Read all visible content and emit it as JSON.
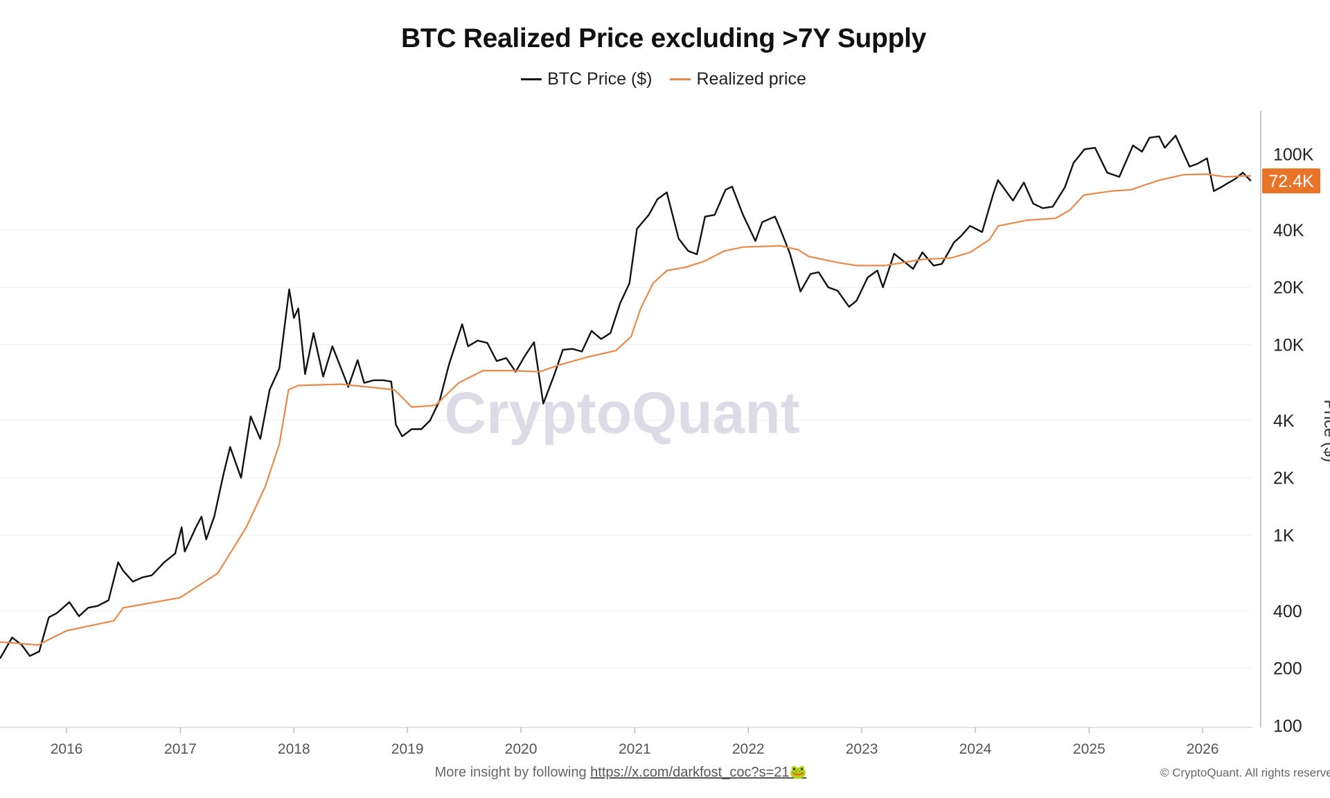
{
  "chart_data": {
    "type": "line",
    "title": "BTC Realized Price excluding >7Y Supply",
    "ylabel": "Price ($)",
    "y_scale": "log",
    "ylim": [
      100,
      160000
    ],
    "xlim": [
      "2015-06-01",
      "2026-06-10"
    ],
    "x_tick_labels": [
      "2016",
      "2017",
      "2018",
      "2019",
      "2020",
      "2021",
      "2022",
      "2023",
      "2024",
      "2025",
      "2026"
    ],
    "y_tick_labels": [
      "100K",
      "40K",
      "20K",
      "10K",
      "4K",
      "2K",
      "1K",
      "400",
      "200",
      "100"
    ],
    "y_tick_values": [
      100000,
      40000,
      20000,
      10000,
      4000,
      2000,
      1000,
      400,
      200,
      100
    ],
    "grid": true,
    "legend_position": "top-center",
    "watermark": "CryptoQuant",
    "last_value_badge": {
      "label": "72.4K",
      "value": 72400,
      "color": "#e8742a"
    },
    "series": [
      {
        "name": "BTC Price ($)",
        "color": "#111111",
        "points": [
          [
            "2015-06-01",
            225
          ],
          [
            "2015-07-10",
            290
          ],
          [
            "2015-08-10",
            265
          ],
          [
            "2015-09-05",
            232
          ],
          [
            "2015-10-05",
            245
          ],
          [
            "2015-11-05",
            370
          ],
          [
            "2015-12-01",
            390
          ],
          [
            "2016-01-10",
            445
          ],
          [
            "2016-02-10",
            375
          ],
          [
            "2016-03-10",
            415
          ],
          [
            "2016-04-10",
            425
          ],
          [
            "2016-05-15",
            455
          ],
          [
            "2016-06-15",
            720
          ],
          [
            "2016-07-01",
            650
          ],
          [
            "2016-08-01",
            570
          ],
          [
            "2016-09-01",
            600
          ],
          [
            "2016-10-01",
            615
          ],
          [
            "2016-11-10",
            720
          ],
          [
            "2016-12-15",
            800
          ],
          [
            "2017-01-05",
            1100
          ],
          [
            "2017-01-15",
            820
          ],
          [
            "2017-02-20",
            1100
          ],
          [
            "2017-03-10",
            1250
          ],
          [
            "2017-03-25",
            950
          ],
          [
            "2017-04-20",
            1250
          ],
          [
            "2017-05-20",
            2100
          ],
          [
            "2017-06-10",
            2900
          ],
          [
            "2017-07-15",
            2000
          ],
          [
            "2017-08-15",
            4200
          ],
          [
            "2017-09-15",
            3200
          ],
          [
            "2017-10-15",
            5800
          ],
          [
            "2017-11-15",
            7500
          ],
          [
            "2017-12-17",
            19500
          ],
          [
            "2018-01-01",
            13800
          ],
          [
            "2018-01-15",
            15500
          ],
          [
            "2018-02-06",
            7000
          ],
          [
            "2018-03-05",
            11500
          ],
          [
            "2018-04-05",
            6800
          ],
          [
            "2018-05-05",
            9800
          ],
          [
            "2018-06-25",
            6000
          ],
          [
            "2018-07-25",
            8300
          ],
          [
            "2018-08-15",
            6300
          ],
          [
            "2018-09-15",
            6500
          ],
          [
            "2018-10-15",
            6500
          ],
          [
            "2018-11-10",
            6400
          ],
          [
            "2018-11-25",
            3800
          ],
          [
            "2018-12-15",
            3300
          ],
          [
            "2019-01-15",
            3600
          ],
          [
            "2019-02-15",
            3600
          ],
          [
            "2019-03-15",
            4000
          ],
          [
            "2019-04-15",
            5100
          ],
          [
            "2019-05-15",
            7900
          ],
          [
            "2019-06-26",
            12800
          ],
          [
            "2019-07-15",
            9800
          ],
          [
            "2019-08-15",
            10500
          ],
          [
            "2019-09-15",
            10200
          ],
          [
            "2019-10-15",
            8200
          ],
          [
            "2019-11-15",
            8500
          ],
          [
            "2019-12-15",
            7200
          ],
          [
            "2020-01-15",
            8800
          ],
          [
            "2020-02-12",
            10300
          ],
          [
            "2020-03-13",
            4900
          ],
          [
            "2020-04-15",
            6800
          ],
          [
            "2020-05-15",
            9400
          ],
          [
            "2020-06-15",
            9500
          ],
          [
            "2020-07-15",
            9200
          ],
          [
            "2020-08-15",
            11800
          ],
          [
            "2020-09-15",
            10700
          ],
          [
            "2020-10-15",
            11500
          ],
          [
            "2020-11-15",
            16500
          ],
          [
            "2020-12-15",
            21000
          ],
          [
            "2021-01-08",
            40500
          ],
          [
            "2021-02-15",
            48000
          ],
          [
            "2021-03-15",
            58000
          ],
          [
            "2021-04-14",
            63000
          ],
          [
            "2021-05-22",
            36000
          ],
          [
            "2021-06-22",
            31000
          ],
          [
            "2021-07-20",
            29800
          ],
          [
            "2021-08-15",
            47000
          ],
          [
            "2021-09-15",
            48000
          ],
          [
            "2021-10-20",
            65000
          ],
          [
            "2021-11-10",
            67500
          ],
          [
            "2021-12-15",
            48000
          ],
          [
            "2022-01-24",
            35000
          ],
          [
            "2022-02-15",
            44000
          ],
          [
            "2022-03-28",
            47000
          ],
          [
            "2022-04-15",
            40000
          ],
          [
            "2022-05-15",
            30000
          ],
          [
            "2022-06-18",
            19000
          ],
          [
            "2022-07-20",
            23500
          ],
          [
            "2022-08-15",
            24000
          ],
          [
            "2022-09-15",
            20000
          ],
          [
            "2022-10-15",
            19200
          ],
          [
            "2022-11-21",
            15800
          ],
          [
            "2022-12-15",
            17000
          ],
          [
            "2023-01-20",
            22500
          ],
          [
            "2023-02-20",
            24500
          ],
          [
            "2023-03-10",
            20000
          ],
          [
            "2023-04-15",
            30000
          ],
          [
            "2023-06-15",
            25000
          ],
          [
            "2023-07-15",
            30500
          ],
          [
            "2023-08-20",
            26000
          ],
          [
            "2023-09-15",
            26500
          ],
          [
            "2023-10-25",
            34500
          ],
          [
            "2023-11-15",
            37000
          ],
          [
            "2023-12-15",
            42000
          ],
          [
            "2024-01-23",
            39000
          ],
          [
            "2024-02-28",
            62000
          ],
          [
            "2024-03-14",
            73000
          ],
          [
            "2024-05-01",
            57000
          ],
          [
            "2024-06-05",
            71000
          ],
          [
            "2024-07-05",
            55000
          ],
          [
            "2024-08-05",
            52000
          ],
          [
            "2024-09-06",
            53000
          ],
          [
            "2024-10-15",
            67000
          ],
          [
            "2024-11-12",
            90000
          ],
          [
            "2024-12-17",
            106000
          ],
          [
            "2025-01-20",
            108000
          ],
          [
            "2025-02-28",
            80000
          ],
          [
            "2025-04-08",
            76000
          ],
          [
            "2025-05-22",
            111000
          ],
          [
            "2025-06-20",
            103000
          ],
          [
            "2025-07-14",
            122000
          ],
          [
            "2025-08-14",
            124000
          ],
          [
            "2025-09-01",
            108000
          ],
          [
            "2025-10-06",
            125000
          ],
          [
            "2025-11-20",
            86000
          ],
          [
            "2025-12-15",
            89000
          ],
          [
            "2026-01-15",
            95000
          ],
          [
            "2026-02-06",
            64000
          ],
          [
            "2026-03-01",
            67000
          ],
          [
            "2026-03-20",
            70000
          ],
          [
            "2026-04-15",
            74000
          ],
          [
            "2026-05-10",
            80000
          ],
          [
            "2026-06-05",
            72400
          ]
        ]
      },
      {
        "name": "Realized price",
        "color": "#e8894a",
        "points": [
          [
            "2015-06-01",
            275
          ],
          [
            "2015-10-01",
            265
          ],
          [
            "2016-01-01",
            315
          ],
          [
            "2016-06-01",
            355
          ],
          [
            "2016-07-01",
            415
          ],
          [
            "2016-12-31",
            470
          ],
          [
            "2017-05-01",
            630
          ],
          [
            "2017-08-01",
            1100
          ],
          [
            "2017-10-01",
            1800
          ],
          [
            "2017-11-15",
            3000
          ],
          [
            "2017-12-15",
            5800
          ],
          [
            "2018-01-15",
            6100
          ],
          [
            "2018-06-01",
            6200
          ],
          [
            "2018-11-20",
            5800
          ],
          [
            "2019-01-15",
            4700
          ],
          [
            "2019-04-01",
            4800
          ],
          [
            "2019-06-15",
            6300
          ],
          [
            "2019-09-01",
            7300
          ],
          [
            "2019-12-01",
            7300
          ],
          [
            "2020-03-01",
            7200
          ],
          [
            "2020-05-01",
            7800
          ],
          [
            "2020-08-01",
            8600
          ],
          [
            "2020-11-01",
            9300
          ],
          [
            "2020-12-20",
            11000
          ],
          [
            "2021-01-20",
            15500
          ],
          [
            "2021-03-01",
            21000
          ],
          [
            "2021-04-15",
            24500
          ],
          [
            "2021-06-15",
            25500
          ],
          [
            "2021-08-15",
            27500
          ],
          [
            "2021-10-15",
            31000
          ],
          [
            "2021-12-15",
            32500
          ],
          [
            "2022-04-15",
            33000
          ],
          [
            "2022-06-10",
            31500
          ],
          [
            "2022-07-15",
            29000
          ],
          [
            "2022-10-15",
            27000
          ],
          [
            "2022-12-15",
            26000
          ],
          [
            "2023-03-15",
            26000
          ],
          [
            "2023-07-15",
            28000
          ],
          [
            "2023-10-15",
            28500
          ],
          [
            "2023-12-15",
            30500
          ],
          [
            "2024-02-15",
            35500
          ],
          [
            "2024-03-15",
            42000
          ],
          [
            "2024-06-15",
            45000
          ],
          [
            "2024-09-15",
            46000
          ],
          [
            "2024-11-01",
            51000
          ],
          [
            "2024-12-15",
            61000
          ],
          [
            "2025-03-15",
            64000
          ],
          [
            "2025-05-15",
            65000
          ],
          [
            "2025-08-15",
            73000
          ],
          [
            "2025-11-01",
            78000
          ],
          [
            "2026-01-15",
            78500
          ],
          [
            "2026-03-15",
            76000
          ],
          [
            "2026-06-05",
            77000
          ]
        ]
      }
    ]
  },
  "footer": {
    "text": "More insight by following",
    "link": "https://x.com/darkfost_coc?s=21",
    "emoji": "🐸"
  },
  "copyright": "© CryptoQuant. All rights reserved."
}
